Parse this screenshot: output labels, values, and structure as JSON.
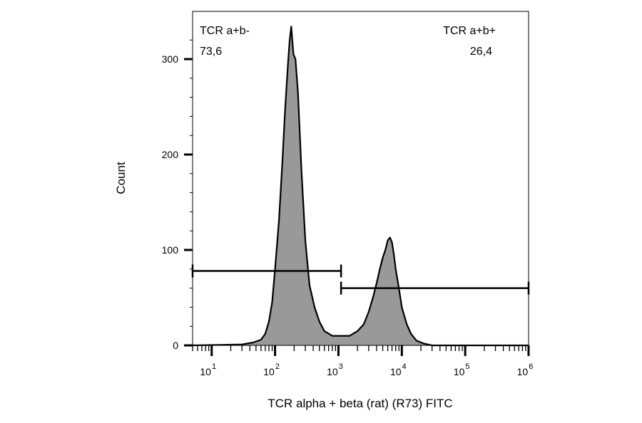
{
  "chart_data": {
    "type": "area",
    "xlabel": "TCR alpha + beta (rat) (R73) FITC",
    "ylabel": "Count",
    "x_scale": "log",
    "xlim": [
      5,
      1000000
    ],
    "ylim": [
      0,
      350
    ],
    "x_ticks": [
      {
        "base": "10",
        "exp": "1",
        "value": 10
      },
      {
        "base": "10",
        "exp": "2",
        "value": 100
      },
      {
        "base": "10",
        "exp": "3",
        "value": 1000
      },
      {
        "base": "10",
        "exp": "4",
        "value": 10000
      },
      {
        "base": "10",
        "exp": "5",
        "value": 100000
      },
      {
        "base": "10",
        "exp": "6",
        "value": 1000000
      }
    ],
    "y_ticks": [
      "0",
      "100",
      "200",
      "300"
    ],
    "y_tick_values": [
      0,
      100,
      200,
      300
    ],
    "fill_color": "#999999",
    "line_color": "#000000",
    "grid": false,
    "series": [
      {
        "x": [
          5,
          30,
          45,
          60,
          70,
          80,
          90,
          100,
          115,
          130,
          145,
          160,
          170,
          180,
          195,
          210,
          230,
          260,
          300,
          350,
          420,
          500,
          600,
          800,
          1000,
          1500,
          2000,
          2500,
          3000,
          3500,
          4000,
          4500,
          5000,
          5500,
          6000,
          6500,
          7000,
          7500,
          8000,
          9000,
          10000,
          12000,
          14000,
          17000,
          22000,
          30000,
          60000,
          1000000
        ],
        "values": [
          0,
          1,
          3,
          6,
          12,
          25,
          45,
          80,
          130,
          190,
          250,
          295,
          320,
          334,
          305,
          300,
          265,
          185,
          110,
          63,
          40,
          25,
          15,
          10,
          10,
          10,
          15,
          22,
          35,
          50,
          65,
          80,
          92,
          100,
          110,
          113,
          108,
          95,
          80,
          60,
          40,
          22,
          12,
          5,
          2,
          0,
          0,
          0
        ]
      }
    ],
    "gates": [
      {
        "name": "TCR a+b-",
        "percent": "73,6",
        "x_range": [
          5,
          1100
        ],
        "y": 78
      },
      {
        "name": "TCR a+b+",
        "percent": "26,4",
        "x_range": [
          1100,
          1000000
        ],
        "y": 60
      }
    ]
  }
}
